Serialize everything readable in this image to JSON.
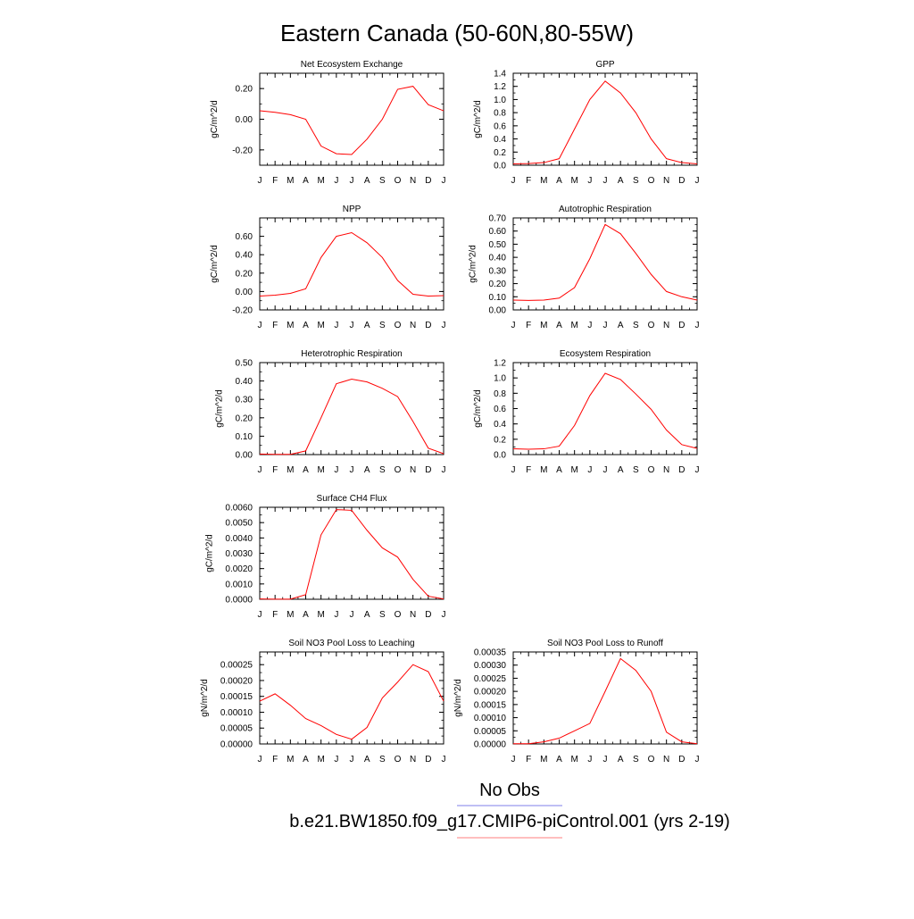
{
  "figure": {
    "title": "Eastern Canada (50-60N,80-55W)",
    "legend": [
      {
        "label": "No Obs",
        "color": "#9999ee"
      },
      {
        "label": "b.e21.BW1850.f09_g17.CMIP6-piControl.001 (yrs 2-19)",
        "color": "#ff9999"
      }
    ],
    "line_color": "#ff0000"
  },
  "chart_data": [
    {
      "type": "line",
      "title": "Net Ecosystem Exchange",
      "ylabel": "gC/m^2/d",
      "xlabel": "",
      "categories": [
        "J",
        "F",
        "M",
        "A",
        "M",
        "J",
        "J",
        "A",
        "S",
        "O",
        "N",
        "D",
        "J"
      ],
      "ylim": [
        -0.3,
        0.3
      ],
      "yticks": [
        "-0.20",
        "0.00",
        "0.20"
      ],
      "ytick_values": [
        -0.2,
        0.0,
        0.2
      ],
      "values": [
        0.055,
        0.045,
        0.03,
        0.0,
        -0.175,
        -0.225,
        -0.23,
        -0.13,
        0.0,
        0.195,
        0.215,
        0.095,
        0.055
      ]
    },
    {
      "type": "line",
      "title": "GPP",
      "ylabel": "gC/m^2/d",
      "xlabel": "",
      "categories": [
        "J",
        "F",
        "M",
        "A",
        "M",
        "J",
        "J",
        "A",
        "S",
        "O",
        "N",
        "D",
        "J"
      ],
      "ylim": [
        0.0,
        1.4
      ],
      "yticks": [
        "0.0",
        "0.2",
        "0.4",
        "0.6",
        "0.8",
        "1.0",
        "1.2",
        "1.4"
      ],
      "ytick_values": [
        0,
        0.2,
        0.4,
        0.6,
        0.8,
        1.0,
        1.2,
        1.4
      ],
      "values": [
        0.02,
        0.025,
        0.04,
        0.1,
        0.55,
        1.0,
        1.28,
        1.1,
        0.8,
        0.4,
        0.1,
        0.04,
        0.02
      ]
    },
    {
      "type": "line",
      "title": "NPP",
      "ylabel": "gC/m^2/d",
      "xlabel": "",
      "categories": [
        "J",
        "F",
        "M",
        "A",
        "M",
        "J",
        "J",
        "A",
        "S",
        "O",
        "N",
        "D",
        "J"
      ],
      "ylim": [
        -0.2,
        0.8
      ],
      "yticks": [
        "-0.20",
        "0.00",
        "0.20",
        "0.40",
        "0.60"
      ],
      "ytick_values": [
        -0.2,
        0,
        0.2,
        0.4,
        0.6
      ],
      "values": [
        -0.05,
        -0.04,
        -0.02,
        0.03,
        0.37,
        0.6,
        0.64,
        0.53,
        0.37,
        0.12,
        -0.03,
        -0.05,
        -0.045
      ]
    },
    {
      "type": "line",
      "title": "Autotrophic Respiration",
      "ylabel": "gC/m^2/d",
      "xlabel": "",
      "categories": [
        "J",
        "F",
        "M",
        "A",
        "M",
        "J",
        "J",
        "A",
        "S",
        "O",
        "N",
        "D",
        "J"
      ],
      "ylim": [
        0.0,
        0.7
      ],
      "yticks": [
        "0.00",
        "0.10",
        "0.20",
        "0.30",
        "0.40",
        "0.50",
        "0.60",
        "0.70"
      ],
      "ytick_values": [
        0,
        0.1,
        0.2,
        0.3,
        0.4,
        0.5,
        0.6,
        0.7
      ],
      "values": [
        0.075,
        0.072,
        0.075,
        0.09,
        0.17,
        0.39,
        0.65,
        0.58,
        0.43,
        0.27,
        0.14,
        0.1,
        0.075
      ]
    },
    {
      "type": "line",
      "title": "Heterotrophic Respiration",
      "ylabel": "gC/m^2/d",
      "xlabel": "",
      "categories": [
        "J",
        "F",
        "M",
        "A",
        "M",
        "J",
        "J",
        "A",
        "S",
        "O",
        "N",
        "D",
        "J"
      ],
      "ylim": [
        0.0,
        0.5
      ],
      "yticks": [
        "0.00",
        "0.10",
        "0.20",
        "0.30",
        "0.40",
        "0.50"
      ],
      "ytick_values": [
        0,
        0.1,
        0.2,
        0.3,
        0.4,
        0.5
      ],
      "values": [
        0.003,
        0.001,
        0.001,
        0.02,
        0.2,
        0.385,
        0.41,
        0.395,
        0.36,
        0.315,
        0.18,
        0.035,
        0.005
      ]
    },
    {
      "type": "line",
      "title": "Ecosystem Respiration",
      "ylabel": "gC/m^2/d",
      "xlabel": "",
      "categories": [
        "J",
        "F",
        "M",
        "A",
        "M",
        "J",
        "J",
        "A",
        "S",
        "O",
        "N",
        "D",
        "J"
      ],
      "ylim": [
        0.0,
        1.2
      ],
      "yticks": [
        "0.0",
        "0.2",
        "0.4",
        "0.6",
        "0.8",
        "1.0",
        "1.2"
      ],
      "ytick_values": [
        0,
        0.2,
        0.4,
        0.6,
        0.8,
        1.0,
        1.2
      ],
      "values": [
        0.075,
        0.07,
        0.075,
        0.11,
        0.38,
        0.77,
        1.06,
        0.98,
        0.79,
        0.59,
        0.32,
        0.13,
        0.08
      ]
    },
    {
      "type": "line",
      "title": "Surface CH4 Flux",
      "ylabel": "gC/m^2/d",
      "xlabel": "",
      "categories": [
        "J",
        "F",
        "M",
        "A",
        "M",
        "J",
        "J",
        "A",
        "S",
        "O",
        "N",
        "D",
        "J"
      ],
      "ylim": [
        0.0,
        0.006
      ],
      "yticks": [
        "0.0000",
        "0.0010",
        "0.0020",
        "0.0030",
        "0.0040",
        "0.0050",
        "0.0060"
      ],
      "ytick_values": [
        0,
        0.001,
        0.002,
        0.003,
        0.004,
        0.005,
        0.006
      ],
      "values": [
        2e-05,
        1e-05,
        1e-05,
        0.0003,
        0.0042,
        0.00585,
        0.0058,
        0.0045,
        0.00335,
        0.00275,
        0.0013,
        0.0002,
        2e-05
      ]
    },
    {
      "type": "line",
      "title": "Soil NO3 Pool Loss to Leaching",
      "ylabel": "gN/m^2/d",
      "xlabel": "",
      "categories": [
        "J",
        "F",
        "M",
        "A",
        "M",
        "J",
        "J",
        "A",
        "S",
        "O",
        "N",
        "D",
        "J"
      ],
      "ylim": [
        0.0,
        0.00029
      ],
      "yticks": [
        "0.00000",
        "0.00005",
        "0.00010",
        "0.00015",
        "0.00020",
        "0.00025"
      ],
      "ytick_values": [
        0,
        5e-05,
        0.0001,
        0.00015,
        0.0002,
        0.00025
      ],
      "values": [
        0.000135,
        0.000158,
        0.000122,
        8e-05,
        5.8e-05,
        3e-05,
        1.5e-05,
        5.2e-05,
        0.000145,
        0.000195,
        0.00025,
        0.000228,
        0.000135
      ]
    },
    {
      "type": "line",
      "title": "Soil NO3 Pool Loss to Runoff",
      "ylabel": "gN/m^2/d",
      "xlabel": "",
      "categories": [
        "J",
        "F",
        "M",
        "A",
        "M",
        "J",
        "J",
        "A",
        "S",
        "O",
        "N",
        "D",
        "J"
      ],
      "ylim": [
        0.0,
        0.00035
      ],
      "yticks": [
        "0.00000",
        "0.00005",
        "0.00010",
        "0.00015",
        "0.00020",
        "0.00025",
        "0.00030",
        "0.00035"
      ],
      "ytick_values": [
        0,
        5e-05,
        0.0001,
        0.00015,
        0.0002,
        0.00025,
        0.0003,
        0.00035
      ],
      "values": [
        1e-06,
        1e-06,
        8e-06,
        2.2e-05,
        5e-05,
        7.8e-05,
        0.0002,
        0.000325,
        0.00028,
        0.0002,
        4.5e-05,
        8e-06,
        1e-06
      ]
    }
  ]
}
